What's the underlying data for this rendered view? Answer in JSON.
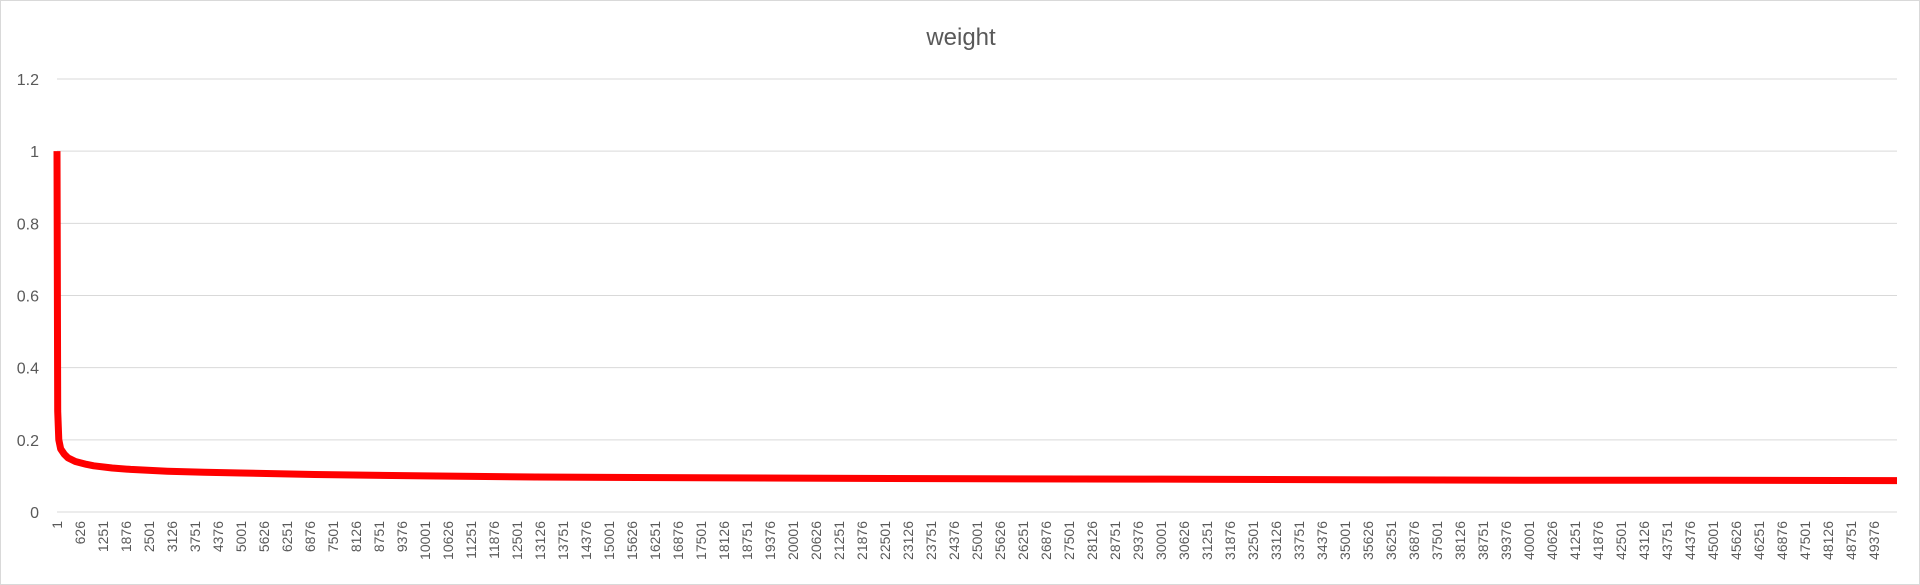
{
  "chart_data": {
    "type": "line",
    "title": "weight",
    "xlabel": "",
    "ylabel": "",
    "ylim": [
      0,
      1.2
    ],
    "yticks": [
      "0",
      "0.2",
      "0.4",
      "0.6",
      "0.8",
      "1",
      "1.2"
    ],
    "xlim": [
      1,
      50000
    ],
    "xticks": [
      "1",
      "626",
      "1251",
      "1876",
      "2501",
      "3126",
      "3751",
      "4376",
      "5001",
      "5626",
      "6251",
      "6876",
      "7501",
      "8126",
      "8751",
      "9376",
      "10001",
      "10626",
      "11251",
      "11876",
      "12501",
      "13126",
      "13751",
      "14376",
      "15001",
      "15626",
      "16251",
      "16876",
      "17501",
      "18126",
      "18751",
      "19376",
      "20001",
      "20626",
      "21251",
      "21876",
      "22501",
      "23126",
      "23751",
      "24376",
      "25001",
      "25626",
      "26251",
      "26876",
      "27501",
      "28126",
      "28751",
      "29376",
      "30001",
      "30626",
      "31251",
      "31876",
      "32501",
      "33126",
      "33751",
      "34376",
      "35001",
      "35626",
      "36251",
      "36876",
      "37501",
      "38126",
      "38751",
      "39376",
      "40001",
      "40626",
      "41251",
      "41876",
      "42501",
      "43126",
      "43751",
      "44376",
      "45001",
      "45626",
      "46251",
      "46876",
      "47501",
      "48126",
      "48751",
      "49376"
    ],
    "grid": true,
    "legend": "none",
    "series_color": "#ff0000",
    "series": [
      {
        "x": [
          1,
          20,
          50,
          100,
          200,
          300,
          500,
          800,
          1000,
          1500,
          2000,
          3000,
          4000,
          5000,
          7000,
          10000,
          13000,
          15000,
          20000,
          25000,
          30000,
          36000,
          40000,
          45000,
          50000
        ],
        "y": [
          1.0,
          0.28,
          0.2,
          0.175,
          0.16,
          0.15,
          0.14,
          0.132,
          0.128,
          0.122,
          0.118,
          0.113,
          0.11,
          0.108,
          0.104,
          0.1,
          0.097,
          0.096,
          0.094,
          0.092,
          0.091,
          0.089,
          0.088,
          0.088,
          0.087
        ]
      }
    ]
  }
}
